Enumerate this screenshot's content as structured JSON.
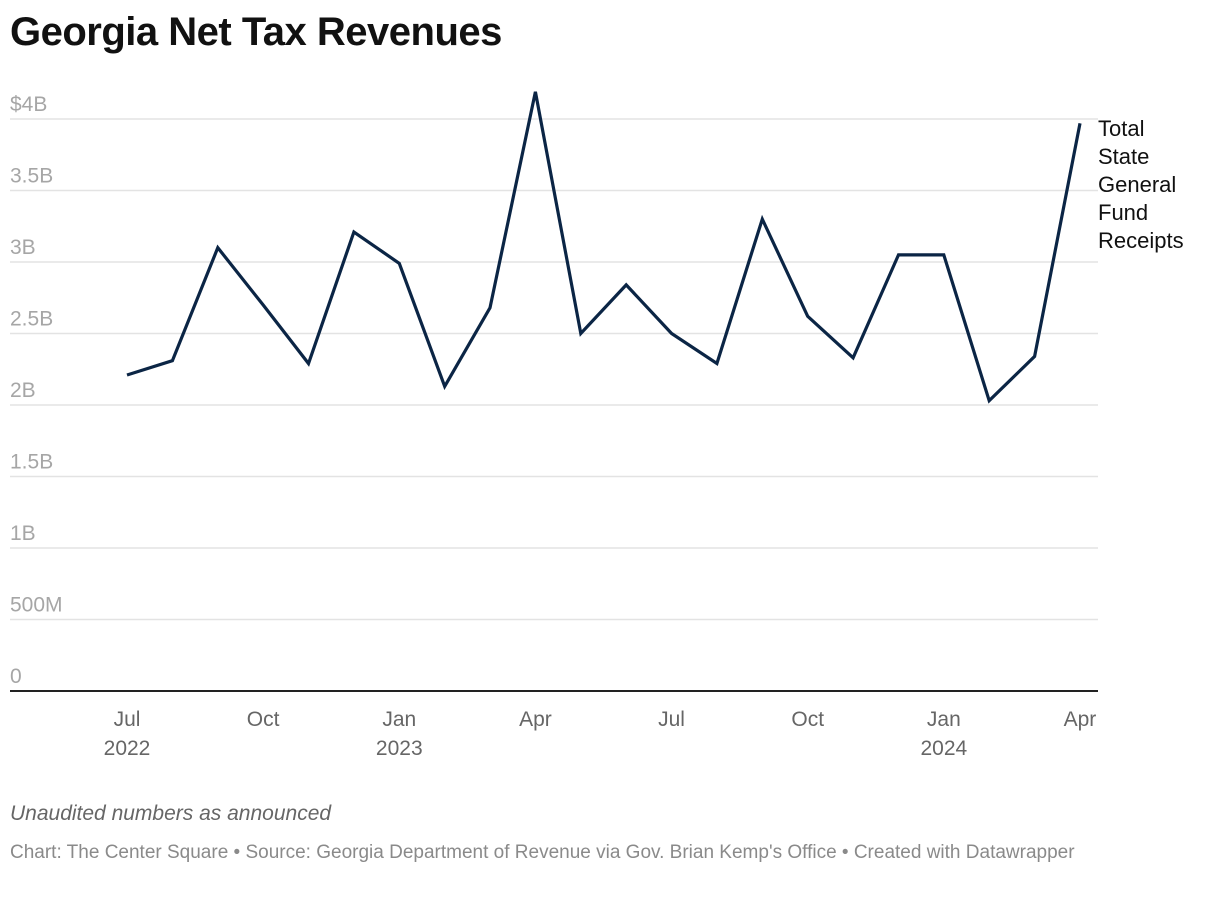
{
  "chart_data": {
    "type": "line",
    "title": "Georgia Net Tax Revenues",
    "xlabel": "",
    "ylabel": "",
    "ylim": [
      0,
      4000000000
    ],
    "grid": true,
    "y_ticks": [
      {
        "value": 0,
        "label": "0"
      },
      {
        "value": 500000000,
        "label": "500M"
      },
      {
        "value": 1000000000,
        "label": "1B"
      },
      {
        "value": 1500000000,
        "label": "1.5B"
      },
      {
        "value": 2000000000,
        "label": "2B"
      },
      {
        "value": 2500000000,
        "label": "2.5B"
      },
      {
        "value": 3000000000,
        "label": "3B"
      },
      {
        "value": 3500000000,
        "label": "3.5B"
      },
      {
        "value": 4000000000,
        "label": "$4B"
      }
    ],
    "x_ticks": [
      {
        "index": 0,
        "label": "Jul",
        "sub": "2022"
      },
      {
        "index": 3,
        "label": "Oct",
        "sub": ""
      },
      {
        "index": 6,
        "label": "Jan",
        "sub": "2023"
      },
      {
        "index": 9,
        "label": "Apr",
        "sub": ""
      },
      {
        "index": 12,
        "label": "Jul",
        "sub": ""
      },
      {
        "index": 15,
        "label": "Oct",
        "sub": ""
      },
      {
        "index": 18,
        "label": "Jan",
        "sub": "2024"
      },
      {
        "index": 21,
        "label": "Apr",
        "sub": ""
      }
    ],
    "x": [
      "2022-07",
      "2022-08",
      "2022-09",
      "2022-10",
      "2022-11",
      "2022-12",
      "2023-01",
      "2023-02",
      "2023-03",
      "2023-04",
      "2023-05",
      "2023-06",
      "2023-07",
      "2023-08",
      "2023-09",
      "2023-10",
      "2023-11",
      "2023-12",
      "2024-01",
      "2024-02",
      "2024-03",
      "2024-04"
    ],
    "series": [
      {
        "name": "Total State General Fund Receipts",
        "color": "#0b2545",
        "values": [
          2.21,
          2.31,
          3.1,
          2.7,
          2.29,
          3.21,
          2.99,
          2.13,
          2.68,
          4.19,
          2.5,
          2.84,
          2.5,
          2.29,
          3.3,
          2.62,
          2.33,
          3.05,
          3.05,
          2.03,
          2.34,
          3.97
        ],
        "unit": "billion USD"
      }
    ],
    "legend": "right, end of line"
  },
  "legend_label_lines": [
    "Total",
    "State",
    "General",
    "Fund",
    "Receipts"
  ],
  "notes": "Unaudited numbers as announced",
  "footer": "Chart: The Center Square • Source: Georgia Department of Revenue via Gov. Brian Kemp's Office • Created with Datawrapper",
  "colors": {
    "line": "#0b2545",
    "grid": "#e3e3e3",
    "axis": "#222222"
  }
}
